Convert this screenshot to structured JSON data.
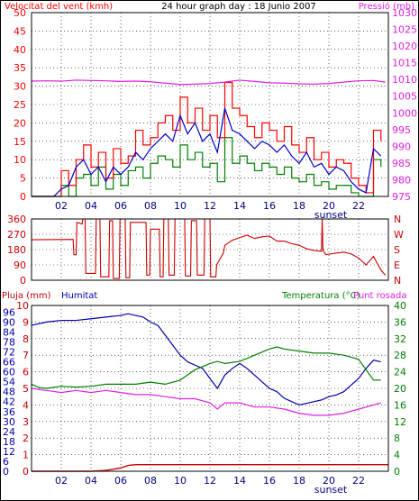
{
  "header": {
    "title": "24 hour graph day : 18 Junio 2007",
    "left_label": "Velocitat del vent (kmh)",
    "right_label": "Pressió (mb)"
  },
  "colors": {
    "background": "#ffffff",
    "gust": "#ff0000",
    "wind": "#008000",
    "average": "#0000cc",
    "pressure": "#e020e0",
    "direction": "#cc0000",
    "rain": "#cc0000",
    "humidity": "#0000aa",
    "temperature": "#008000",
    "dewpoint": "#e020e0",
    "grid": "#000000"
  },
  "chart_data": [
    {
      "type": "line",
      "title": "24 hour graph day : 18 Junio 2007",
      "ylabel": "Velocitat del vent (kmh)",
      "y2label": "Pressió (mb)",
      "ylim": [
        0,
        50
      ],
      "y2lim": [
        975,
        1030
      ],
      "yticks": [
        0,
        5,
        10,
        15,
        20,
        25,
        30,
        35,
        40,
        45,
        50
      ],
      "y2ticks": [
        975,
        980,
        985,
        990,
        995,
        1000,
        1005,
        1010,
        1015,
        1020,
        1025,
        1030
      ],
      "xticks": [
        "02",
        "04",
        "06",
        "08",
        "10",
        "12",
        "14",
        "16",
        "18",
        "20",
        "22"
      ],
      "xlim": [
        0,
        24
      ],
      "annotation": "sunset",
      "sunset_hour": 20,
      "grid": true,
      "series": [
        {
          "name": "",
          "role": "gust",
          "x": [
            0,
            1.5,
            2,
            2.5,
            3,
            3.5,
            4,
            4.5,
            5,
            5.5,
            6,
            6.5,
            7,
            7.5,
            8,
            8.5,
            9,
            9.5,
            10,
            10.5,
            11,
            11.5,
            12,
            12.5,
            13,
            13.5,
            14,
            14.5,
            15,
            15.5,
            16,
            16.5,
            17,
            17.5,
            18,
            18.5,
            19,
            19.5,
            20,
            20.5,
            21,
            21.5,
            22,
            22.5,
            23,
            23.5
          ],
          "y": [
            0,
            0,
            7,
            3,
            10,
            14,
            8,
            12,
            5,
            13,
            9,
            11,
            18,
            14,
            16,
            20,
            22,
            18,
            27,
            20,
            24,
            18,
            22,
            16,
            31,
            24,
            22,
            19,
            16,
            20,
            18,
            15,
            19,
            14,
            12,
            16,
            10,
            12,
            8,
            10,
            9,
            5,
            3,
            1,
            18,
            15
          ]
        },
        {
          "name": "",
          "role": "wind",
          "x": [
            0,
            1.5,
            2,
            2.5,
            3,
            3.5,
            4,
            4.5,
            5,
            5.5,
            6,
            6.5,
            7,
            7.5,
            8,
            8.5,
            9,
            9.5,
            10,
            10.5,
            11,
            11.5,
            12,
            12.5,
            13,
            13.5,
            14,
            14.5,
            15,
            15.5,
            16,
            16.5,
            17,
            17.5,
            18,
            18.5,
            19,
            19.5,
            20,
            20.5,
            21,
            21.5,
            22,
            22.5,
            23,
            23.5
          ],
          "y": [
            0,
            0,
            3,
            0,
            5,
            6,
            3,
            8,
            2,
            6,
            3,
            7,
            8,
            5,
            9,
            11,
            10,
            8,
            14,
            10,
            12,
            8,
            9,
            4,
            16,
            9,
            11,
            9,
            7,
            9,
            8,
            6,
            8,
            5,
            4,
            6,
            3,
            4,
            2,
            3,
            3,
            1,
            0,
            0,
            10,
            8
          ]
        },
        {
          "name": "",
          "role": "average",
          "x": [
            0,
            1.5,
            2,
            2.5,
            3,
            3.5,
            4,
            4.5,
            5,
            5.5,
            6,
            6.5,
            7,
            7.5,
            8,
            8.5,
            9,
            9.5,
            10,
            10.5,
            11,
            11.5,
            12,
            12.5,
            13,
            13.5,
            14,
            14.5,
            15,
            15.5,
            16,
            16.5,
            17,
            17.5,
            18,
            18.5,
            19,
            19.5,
            20,
            20.5,
            21,
            21.5,
            22,
            22.5,
            23,
            23.5
          ],
          "y": [
            0,
            0,
            2,
            3,
            8,
            10,
            6,
            8,
            4,
            8,
            6,
            8,
            12,
            10,
            13,
            15,
            17,
            15,
            22,
            17,
            20,
            15,
            17,
            12,
            24,
            18,
            17,
            15,
            13,
            15,
            14,
            12,
            14,
            11,
            9,
            12,
            8,
            9,
            6,
            8,
            7,
            4,
            2,
            1,
            13,
            11
          ]
        },
        {
          "name": "",
          "role": "pressure",
          "axis": "right",
          "x": [
            0,
            1,
            2,
            3,
            4,
            5,
            6,
            7,
            8,
            9,
            10,
            11,
            12,
            13,
            14,
            15,
            16,
            17,
            18,
            19,
            20,
            21,
            22,
            23,
            23.8
          ],
          "y": [
            1009.5,
            1009.6,
            1009.5,
            1009.8,
            1009.7,
            1009.6,
            1009.4,
            1009.5,
            1009.3,
            1008.9,
            1008.5,
            1008.6,
            1008.8,
            1009.2,
            1009.8,
            1009.4,
            1009.0,
            1008.9,
            1008.7,
            1008.6,
            1008.8,
            1009.2,
            1009.6,
            1009.7,
            1009.2
          ]
        }
      ]
    },
    {
      "type": "line",
      "ylim": [
        0,
        360
      ],
      "yticks": [
        0,
        90,
        180,
        270,
        360
      ],
      "y2ticks": [
        "N",
        "W",
        "S",
        "E",
        "N"
      ],
      "xlim": [
        0,
        24
      ],
      "grid": true,
      "series": [
        {
          "name": "",
          "role": "direction",
          "x": [
            0,
            2.8,
            2.85,
            3.0,
            3.05,
            3.4,
            3.45,
            3.6,
            3.65,
            4.3,
            4.35,
            4.6,
            4.65,
            5.2,
            5.25,
            5.45,
            5.5,
            5.9,
            5.95,
            6.3,
            6.35,
            6.6,
            6.65,
            7.7,
            7.75,
            7.95,
            8.0,
            8.6,
            8.65,
            8.85,
            8.9,
            9.2,
            9.25,
            9.6,
            9.65,
            10.3,
            10.35,
            10.7,
            10.75,
            11.1,
            11.15,
            11.6,
            11.65,
            12.0,
            12.05,
            12.4,
            12.45,
            12.9,
            13,
            13.5,
            14,
            14.5,
            15,
            15.5,
            16,
            16.5,
            17,
            17.5,
            18,
            18.5,
            19,
            19.5,
            19.55,
            19.6,
            19.8,
            20.5,
            21,
            21.5,
            22,
            22.5,
            23,
            23.5,
            23.8
          ],
          "y": [
            238,
            240,
            150,
            150,
            340,
            330,
            360,
            360,
            40,
            40,
            360,
            360,
            20,
            20,
            350,
            350,
            10,
            10,
            360,
            360,
            15,
            15,
            340,
            340,
            30,
            30,
            300,
            300,
            20,
            20,
            360,
            360,
            30,
            30,
            360,
            360,
            25,
            25,
            350,
            350,
            30,
            30,
            360,
            360,
            20,
            20,
            90,
            160,
            205,
            235,
            250,
            265,
            245,
            255,
            260,
            230,
            230,
            215,
            205,
            185,
            175,
            170,
            360,
            175,
            150,
            160,
            165,
            155,
            130,
            90,
            140,
            60,
            30
          ]
        }
      ]
    },
    {
      "type": "line",
      "ylabel": "Pluja (mm)",
      "y2label": "Temperatura (°C)",
      "humidity_label": "Humitat",
      "dewpoint_label": "Punt rosada",
      "ylim": [
        0,
        10
      ],
      "yticks": [
        0,
        1,
        2,
        3,
        4,
        5,
        6,
        7,
        8,
        9,
        10
      ],
      "hticks": [
        0,
        6,
        12,
        18,
        24,
        30,
        36,
        42,
        48,
        54,
        60,
        66,
        72,
        78,
        84,
        90,
        96
      ],
      "y2lim": [
        0,
        40
      ],
      "y2ticks": [
        0,
        4,
        8,
        12,
        16,
        20,
        24,
        28,
        32,
        36,
        40
      ],
      "xticks": [
        "02",
        "04",
        "06",
        "08",
        "10",
        "12",
        "14",
        "16",
        "18",
        "20",
        "22"
      ],
      "xlim": [
        0,
        24
      ],
      "annotation": "sunset",
      "sunset_hour": 20,
      "grid": true,
      "series": [
        {
          "name": "Pluja (mm)",
          "role": "rain",
          "x": [
            0,
            4,
            5,
            6,
            6.5,
            7,
            24
          ],
          "y": [
            0,
            0,
            0.05,
            0.2,
            0.35,
            0.4,
            0.4
          ]
        },
        {
          "name": "Humitat",
          "role": "humidity",
          "axis": "humidity",
          "hlim": [
            0,
            100
          ],
          "x": [
            0,
            1,
            2,
            3,
            4,
            5,
            6,
            6.5,
            7,
            7.5,
            8,
            8.5,
            9,
            9.5,
            10,
            10.5,
            11,
            11.5,
            12,
            12.5,
            13,
            13.5,
            14,
            14.5,
            15,
            15.5,
            16,
            16.5,
            17,
            17.5,
            18,
            18.5,
            19,
            19.5,
            20,
            20.5,
            21,
            21.5,
            22,
            22.5,
            23,
            23.5
          ],
          "y": [
            88,
            90,
            91,
            91,
            92,
            93,
            94,
            95,
            94,
            93,
            90,
            88,
            82,
            76,
            70,
            66,
            64,
            62,
            56,
            50,
            58,
            62,
            65,
            62,
            58,
            54,
            50,
            48,
            44,
            42,
            40,
            41,
            42,
            43,
            45,
            46,
            48,
            52,
            56,
            62,
            67,
            66
          ]
        },
        {
          "name": "Temperatura",
          "role": "temperature",
          "axis": "right",
          "x": [
            0,
            0.5,
            1,
            2,
            3,
            4,
            5,
            6,
            7,
            8,
            9,
            10,
            11,
            12,
            12.5,
            13,
            14,
            15,
            16,
            16.5,
            17,
            18,
            19,
            20,
            21,
            22,
            23,
            23.5
          ],
          "y": [
            21,
            20.2,
            20,
            20.5,
            20.3,
            20.5,
            21,
            21,
            21,
            21.5,
            21,
            22,
            24.5,
            26,
            26.5,
            26,
            26.5,
            28,
            29.5,
            30,
            29.5,
            29,
            28.5,
            28.5,
            28,
            27,
            22,
            22
          ]
        },
        {
          "name": "Punt rosada",
          "role": "dewpoint",
          "axis": "right",
          "x": [
            0,
            1,
            2,
            3,
            4,
            5,
            6,
            7,
            8,
            9,
            10,
            11,
            12,
            12.5,
            13,
            14,
            15,
            16,
            17,
            18,
            19,
            20,
            21,
            22,
            23,
            23.5
          ],
          "y": [
            20,
            19.5,
            19,
            19.5,
            19,
            19.5,
            19,
            18.5,
            18.5,
            18,
            17.5,
            17.5,
            16.5,
            15,
            16.5,
            16.5,
            15.5,
            15.5,
            15,
            14,
            13.5,
            13.5,
            14,
            15,
            16,
            16.5
          ]
        }
      ]
    }
  ]
}
